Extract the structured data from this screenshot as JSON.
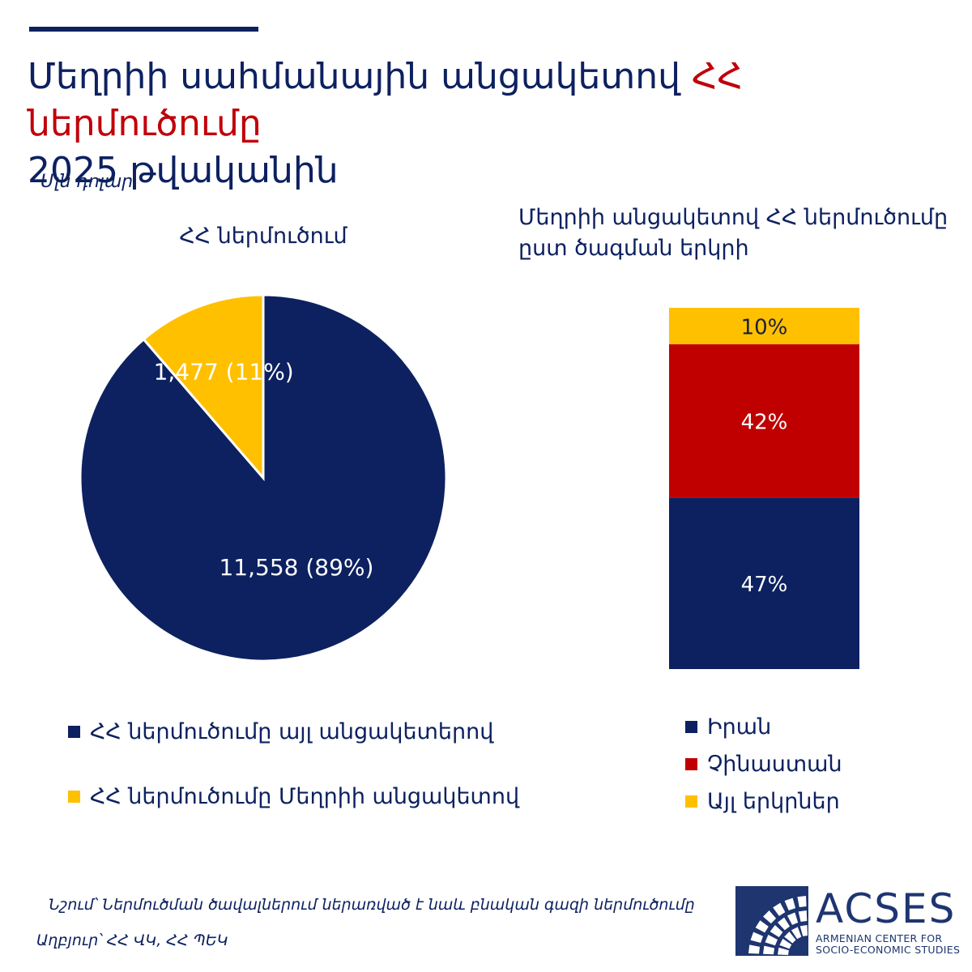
{
  "title": {
    "part1": "Մեղրիի սահմանային անցակետով ",
    "highlight": "ՀՀ ներմուծումը",
    "part2": "2025 թվականին"
  },
  "unit": "Մլն դոլար",
  "colors": {
    "navy": "#0d2160",
    "yellow": "#ffc000",
    "red": "#c00000",
    "title_accent": "#c0000a"
  },
  "chart_data": [
    {
      "type": "pie",
      "title": "ՀՀ ներմուծում",
      "slices": [
        {
          "name": "ՀՀ ներմուծումը այլ անցակետերով",
          "value": 11558,
          "percent": 89,
          "label": "11,558 (89%)",
          "color": "#0d2160"
        },
        {
          "name": "ՀՀ ներմուծումը Մեղրիի անցակետով",
          "value": 1477,
          "percent": 11,
          "label": "1,477 (11%)",
          "color": "#ffc000"
        }
      ]
    },
    {
      "type": "bar",
      "stacked": true,
      "title": "Մեղրիի անցակետով ՀՀ ներմուծումը ըստ ծագման երկրի",
      "series": [
        {
          "name": "Իրան",
          "value": 47,
          "label": "47%",
          "color": "#0d2160"
        },
        {
          "name": "Չինաստան",
          "value": 42,
          "label": "42%",
          "color": "#c00000"
        },
        {
          "name": "Այլ երկրներ",
          "value": 10,
          "label": "10%",
          "color": "#ffc000"
        }
      ]
    }
  ],
  "footer": {
    "note": "Նշում՝ Ներմուծման ծավալներում ներառված է նաև բնական գազի ներմուծումը",
    "source": "Աղբյուր՝ ՀՀ ՎԿ, ՀՀ ՊԵԿ"
  },
  "logo": {
    "name": "ACSES",
    "line1": "ARMENIAN CENTER FOR",
    "line2": "SOCIO-ECONOMIC STUDIES",
    "color": "#1e3570"
  }
}
